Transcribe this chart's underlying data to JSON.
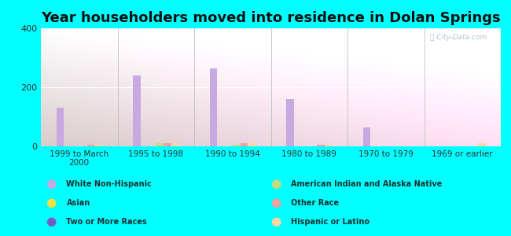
{
  "title": "Year householders moved into residence in Dolan Springs",
  "categories": [
    "1999 to March\n2000",
    "1995 to 1998",
    "1990 to 1994",
    "1980 to 1989",
    "1970 to 1979",
    "1969 or earlier"
  ],
  "series": {
    "White Non-Hispanic": [
      130,
      240,
      265,
      160,
      65,
      0
    ],
    "Asian": [
      0,
      0,
      0,
      0,
      0,
      0
    ],
    "Two or More Races": [
      0,
      0,
      0,
      0,
      0,
      0
    ],
    "American Indian and Alaska Native": [
      0,
      10,
      5,
      0,
      0,
      0
    ],
    "Other Race": [
      5,
      10,
      10,
      5,
      0,
      0
    ],
    "Hispanic or Latino": [
      5,
      10,
      10,
      5,
      0,
      10
    ]
  },
  "colors": {
    "White Non-Hispanic": "#c8a8e0",
    "Asian": "#f0e040",
    "Two or More Races": "#7060c8",
    "American Indian and Alaska Native": "#c8d880",
    "Other Race": "#f0a0a0",
    "Hispanic or Latino": "#f8d8a0"
  },
  "ylim": [
    0,
    400
  ],
  "yticks": [
    0,
    200,
    400
  ],
  "background_color": "#00ffff",
  "title_fontsize": 13,
  "bar_width": 0.1,
  "legend_order_col1": [
    "White Non-Hispanic",
    "Asian",
    "Two or More Races"
  ],
  "legend_order_col2": [
    "American Indian and Alaska Native",
    "Other Race",
    "Hispanic or Latino"
  ]
}
